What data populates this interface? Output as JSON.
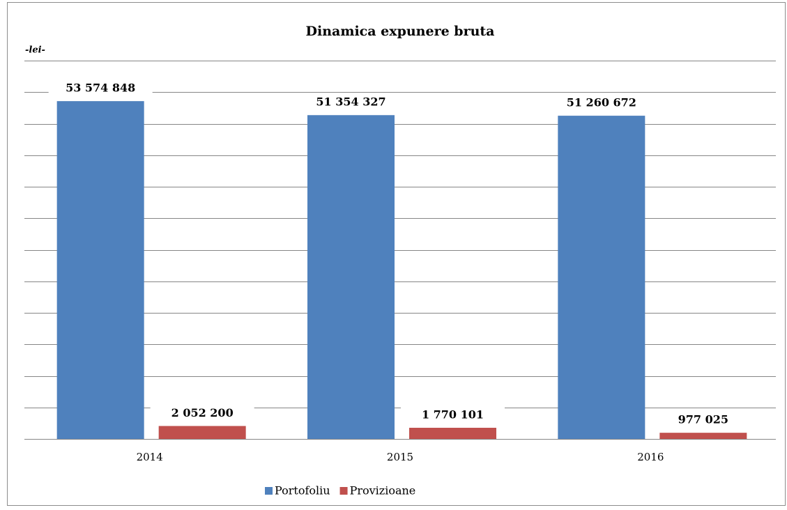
{
  "chart_data": {
    "type": "bar",
    "title": "Dinamica expunere bruta",
    "unit_label": "-lei-",
    "categories": [
      "2014",
      "2015",
      "2016"
    ],
    "series": [
      {
        "name": "Portofoliu",
        "color": "#4f81bd",
        "values": [
          53574848,
          51354327,
          51260672
        ],
        "value_labels": [
          "53 574 848",
          "51 354 327",
          "51 260 672"
        ]
      },
      {
        "name": "Provizioane",
        "color": "#c0504d",
        "values": [
          2052200,
          1770101,
          977025
        ],
        "value_labels": [
          "2 052 200",
          "1 770 101",
          "977 025"
        ]
      }
    ],
    "ylim": [
      0,
      60000000
    ],
    "yticks": [
      0,
      5000000,
      10000000,
      15000000,
      20000000,
      25000000,
      30000000,
      35000000,
      40000000,
      45000000,
      50000000,
      55000000,
      60000000
    ],
    "grid": true,
    "legend": "bottom"
  }
}
